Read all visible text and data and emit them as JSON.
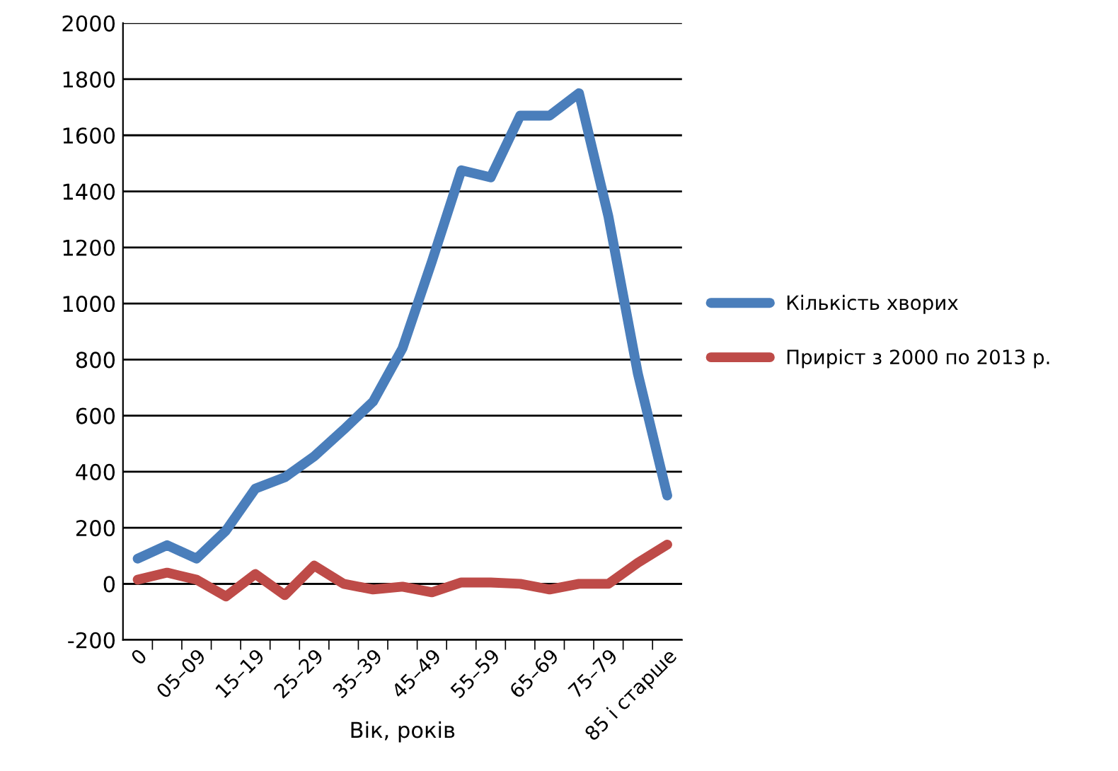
{
  "chart_data": {
    "type": "line",
    "xlabel": "Вік, років",
    "categories": [
      "0",
      null,
      "05–09",
      null,
      "15–19",
      null,
      "25–29",
      null,
      "35–39",
      null,
      "45–49",
      null,
      "55–59",
      null,
      "65–69",
      null,
      "75–79",
      null,
      "85 і старше"
    ],
    "series": [
      {
        "name": "Кількість хворих",
        "color": "#4a7ebb",
        "values": [
          90,
          138,
          90,
          190,
          340,
          380,
          455,
          550,
          650,
          840,
          1150,
          1475,
          1450,
          1670,
          1670,
          1750,
          1310,
          750,
          315
        ]
      },
      {
        "name": "Приріст з 2000 по 2013 р.",
        "color": "#be4b48",
        "values": [
          15,
          40,
          15,
          -45,
          35,
          -40,
          65,
          0,
          -20,
          -10,
          -30,
          5,
          5,
          0,
          -20,
          0,
          0,
          75,
          140
        ]
      }
    ],
    "ylim": [
      -200,
      2000
    ],
    "yticks": [
      -200,
      0,
      200,
      400,
      600,
      800,
      1000,
      1200,
      1400,
      1600,
      1800,
      2000
    ],
    "grid": "y",
    "legend": "right",
    "marker": "none",
    "line_style": "solid"
  }
}
